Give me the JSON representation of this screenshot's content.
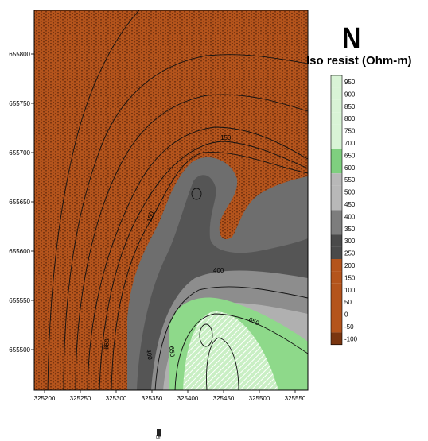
{
  "north_label": "N",
  "legend": {
    "title": "Iso resist (Ohm-m)",
    "levels": [
      "950",
      "900",
      "850",
      "800",
      "750",
      "700",
      "650",
      "600",
      "550",
      "500",
      "450",
      "400",
      "350",
      "300",
      "250",
      "200",
      "150",
      "100",
      "50",
      "0",
      "-50",
      "-100"
    ],
    "colors": {
      "brown": "#b4541c",
      "brown_dot": "#7a3510",
      "dark_gray": "#4a4a4a",
      "mid_gray": "#7d7d7d",
      "light_gray": "#b8b8b8",
      "green_dark": "#7fcf7f",
      "green_light": "#d9f4d6"
    }
  },
  "axes": {
    "x_ticks": [
      "325200",
      "325250",
      "325300",
      "325350",
      "325400",
      "325450",
      "325500",
      "325550"
    ],
    "y_ticks": [
      "655800",
      "655750",
      "655700",
      "655650",
      "655600",
      "655550",
      "655500"
    ]
  },
  "contour_labels": [
    "150",
    "150",
    "400",
    "400",
    "650",
    "650",
    "650"
  ],
  "bottom_mark": "0m"
}
